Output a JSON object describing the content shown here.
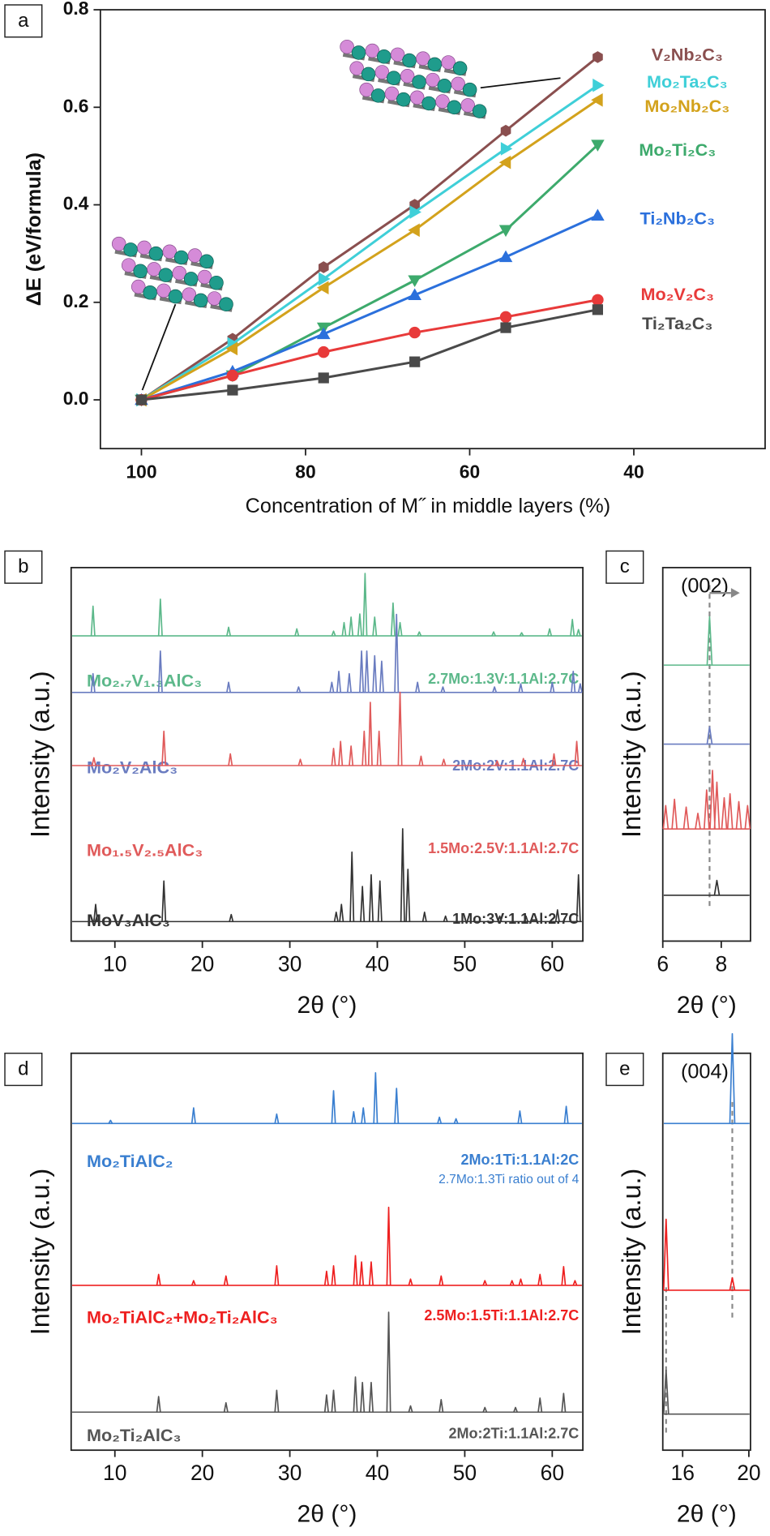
{
  "chart_data": [
    {
      "type": "line",
      "panel": "a",
      "x_label": "Concentration of M˝ in middle layers (%)",
      "y_label": "ΔE (eV/formula)",
      "x": [
        100,
        88.9,
        77.8,
        66.7,
        55.6,
        44.4
      ],
      "xlim": [
        105,
        24
      ],
      "xticks": [
        100,
        80,
        60,
        40
      ],
      "ylim": [
        -0.1,
        0.8
      ],
      "yticks": [
        {
          "value": 0,
          "label": "0.0"
        },
        0.2,
        0.4,
        0.6,
        0.8
      ],
      "series": [
        {
          "name": "V₂Nb₂C₃",
          "color": "#8a4f4f",
          "marker": "hexagon",
          "values": [
            0,
            0.125,
            0.272,
            0.4,
            0.552,
            0.703
          ]
        },
        {
          "name": "Mo₂Ta₂C₃",
          "color": "#3fcfd8",
          "marker": "triangle-right",
          "values": [
            0,
            0.115,
            0.248,
            0.385,
            0.515,
            0.645
          ]
        },
        {
          "name": "Mo₂Nb₂C₃",
          "color": "#d3a21c",
          "marker": "triangle-left",
          "values": [
            0,
            0.105,
            0.23,
            0.348,
            0.487,
            0.615
          ]
        },
        {
          "name": "Mo₂Ti₂C₃",
          "color": "#3daa6c",
          "marker": "triangle-down",
          "values": [
            0,
            0.05,
            0.148,
            0.245,
            0.348,
            0.523
          ]
        },
        {
          "name": "Ti₂Nb₂C₃",
          "color": "#2b70dc",
          "marker": "triangle-up",
          "values": [
            0,
            0.058,
            0.135,
            0.215,
            0.293,
            0.378
          ]
        },
        {
          "name": "Mo₂V₂C₃",
          "color": "#e83a3a",
          "marker": "circle",
          "values": [
            0,
            0.05,
            0.098,
            0.138,
            0.17,
            0.205
          ]
        },
        {
          "name": "Ti₂Ta₂C₃",
          "color": "#4a4a4a",
          "marker": "square",
          "values": [
            0,
            0.02,
            0.045,
            0.078,
            0.148,
            0.185
          ]
        }
      ]
    },
    {
      "type": "xrd",
      "panel": "b",
      "x_label": "2θ (°)",
      "y_label": "Intensity (a.u.)",
      "xlim": [
        5,
        63.5
      ],
      "xticks": [
        10,
        20,
        30,
        40,
        50,
        60
      ],
      "series": [
        {
          "name": "Mo₂.₇V₁.₃AlC₃",
          "recipe": "2.7Mo:1.3V:1.1Al:2.7C",
          "color": "#5cb88a",
          "x": [
            7.5,
            15.2,
            23,
            30.8,
            35,
            36.2,
            37,
            38,
            38.6,
            39.7,
            41.8,
            42.6,
            44.8,
            53.3,
            56.5,
            59.7,
            62.3,
            63
          ],
          "values": [
            38,
            47,
            11,
            9,
            6,
            17,
            24,
            28,
            80,
            24,
            42,
            17,
            5,
            5,
            4,
            9,
            21,
            8
          ]
        },
        {
          "name": "Mo₂V₂AlC₃",
          "recipe": "2Mo:2V:1.1Al:2.7C",
          "color": "#6a7cc0",
          "x": [
            7.5,
            15.2,
            23,
            31,
            34.8,
            35.6,
            36.8,
            38.2,
            38.8,
            39.7,
            40.5,
            42.2,
            44.6,
            47.5,
            53.4,
            56.4,
            60,
            62.4,
            63.2
          ],
          "values": [
            24,
            53,
            13,
            7,
            13,
            27,
            24,
            53,
            53,
            47,
            40,
            100,
            13,
            7,
            7,
            11,
            13,
            27,
            11
          ]
        },
        {
          "name": "Mo₁.₅V₂.₅AlC₃",
          "recipe": "1.5Mo:2.5V:1.1Al:2.7C",
          "color": "#e05a5a",
          "x": [
            7.6,
            15.6,
            23.2,
            31.2,
            35,
            35.8,
            37,
            38.5,
            39.2,
            40.2,
            42.6,
            45,
            47.6,
            53.7,
            56.7,
            60.2,
            62.8
          ],
          "values": [
            10,
            44,
            15,
            8,
            22,
            31,
            25,
            44,
            81,
            44,
            94,
            12,
            8,
            6,
            9,
            15,
            31
          ]
        },
        {
          "name": "MoV₃AlC₃",
          "recipe": "1Mo:3V:1.1Al:2.7C",
          "color": "#333333",
          "x": [
            7.8,
            15.6,
            23.3,
            35.3,
            35.9,
            37.1,
            38.3,
            39.3,
            40.3,
            42.9,
            43.5,
            45.4,
            47.8,
            54,
            57,
            60.6,
            63
          ],
          "values": [
            22,
            52,
            9,
            12,
            22,
            89,
            45,
            60,
            52,
            119,
            67,
            12,
            7,
            7,
            7,
            15,
            60
          ]
        }
      ]
    },
    {
      "type": "xrd",
      "panel": "c",
      "x_label": "2θ (°)",
      "y_label": "Intensity (a.u.)",
      "annotation": "(002)",
      "xlim": [
        6,
        9
      ],
      "xticks": [
        6,
        8
      ],
      "reference_lines": [
        7.6
      ],
      "series": [
        {
          "color": "#5cb88a",
          "x": [
            7.6
          ],
          "values": [
            62
          ]
        },
        {
          "color": "#6a7cc0",
          "x": [
            7.6
          ],
          "values": [
            22
          ]
        },
        {
          "color": "#e05a5a",
          "x": [
            6.1,
            6.4,
            6.8,
            7.2,
            7.5,
            7.7,
            7.85,
            8.1,
            8.3,
            8.6,
            8.9
          ],
          "values": [
            30,
            38,
            28,
            20,
            50,
            75,
            60,
            40,
            45,
            35,
            30
          ]
        },
        {
          "color": "#333333",
          "x": [
            7.85
          ],
          "values": [
            19
          ]
        }
      ]
    },
    {
      "type": "xrd",
      "panel": "d",
      "x_label": "2θ (°)",
      "y_label": "Intensity (a.u.)",
      "xlim": [
        5,
        63.5
      ],
      "xticks": [
        10,
        20,
        30,
        40,
        50,
        60
      ],
      "series": [
        {
          "name": "Mo₂TiAlC₂",
          "recipe": "2Mo:1Ti:1.1Al:2C",
          "note": "2.7Mo:1.3Ti ratio out of 4",
          "color": "#3a7fd0",
          "x": [
            9.5,
            19,
            28.5,
            35,
            37.3,
            38.4,
            39.8,
            42.2,
            47.1,
            49,
            56.3,
            61.6
          ],
          "values": [
            4,
            20,
            12,
            42,
            15,
            20,
            65,
            45,
            8,
            6,
            16,
            22
          ]
        },
        {
          "name": "Mo₂TiAlC₂+Mo₂Ti₂AlC₃",
          "recipe": "2.5Mo:1.5Ti:1.1Al:2.7C",
          "color": "#ee2020",
          "x": [
            15,
            19,
            22.7,
            28.5,
            34.2,
            35,
            37.5,
            38.2,
            39.3,
            41.3,
            43.8,
            47.3,
            52.3,
            55.4,
            56.4,
            58.6,
            61.3,
            62.6
          ],
          "values": [
            14,
            6,
            12,
            25,
            18,
            25,
            38,
            30,
            30,
            100,
            8,
            12,
            6,
            6,
            8,
            14,
            24,
            6
          ]
        },
        {
          "name": "Mo₂Ti₂AlC₃",
          "recipe": "2Mo:2Ti:1.1Al:2.7C",
          "color": "#555555",
          "x": [
            15,
            22.7,
            28.5,
            34.2,
            35,
            37.5,
            38.3,
            39.3,
            41.3,
            43.8,
            47.3,
            52.3,
            55.8,
            58.6,
            61.3
          ],
          "values": [
            20,
            12,
            28,
            22,
            28,
            45,
            38,
            38,
            128,
            8,
            16,
            6,
            6,
            18,
            24
          ]
        }
      ]
    },
    {
      "type": "xrd",
      "panel": "e",
      "x_label": "2θ (°)",
      "y_label": "Intensity (a.u.)",
      "annotation": "(004)",
      "xlim": [
        14.8,
        20.1
      ],
      "xticks": [
        16,
        20
      ],
      "reference_lines": [
        15,
        19
      ],
      "series": [
        {
          "color": "#3a7fd0",
          "x": [
            19
          ],
          "values": [
            115
          ]
        },
        {
          "color": "#ee2020",
          "x": [
            15,
            19
          ],
          "values": [
            91,
            16
          ]
        },
        {
          "color": "#555555",
          "x": [
            15
          ],
          "values": [
            56
          ]
        }
      ]
    }
  ]
}
